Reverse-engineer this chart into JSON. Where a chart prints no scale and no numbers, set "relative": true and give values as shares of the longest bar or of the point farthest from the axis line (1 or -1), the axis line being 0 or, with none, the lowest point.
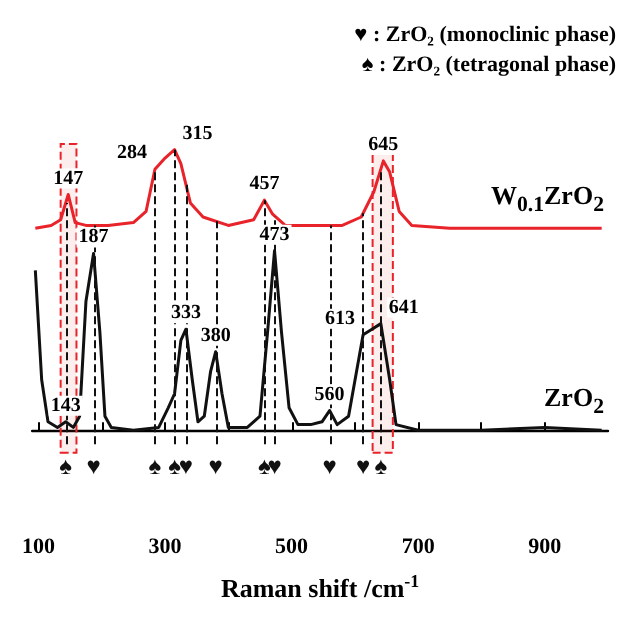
{
  "chart_data": {
    "type": "line",
    "relative": true,
    "xlabel": "Raman shift /cm$^{-1}$",
    "xlim": [
      90,
      1000
    ],
    "xticks": [
      100,
      {
        "value": 200,
        "label": null
      },
      300,
      {
        "value": 400,
        "label": null
      },
      500,
      {
        "value": 600,
        "label": null
      },
      700,
      {
        "value": 800,
        "label": null
      },
      900
    ],
    "series": [
      {
        "name": "W$_{0.1}$ZrO$_{2}$",
        "color": "#e8232a",
        "x": [
          95,
          120,
          135,
          147,
          158,
          175,
          210,
          250,
          270,
          284,
          300,
          315,
          325,
          340,
          360,
          400,
          440,
          457,
          470,
          490,
          530,
          580,
          610,
          630,
          645,
          655,
          670,
          690,
          750,
          800,
          900,
          990
        ],
        "values": [
          0.72,
          0.73,
          0.75,
          0.84,
          0.74,
          0.73,
          0.73,
          0.74,
          0.78,
          0.93,
          0.97,
          1,
          0.95,
          0.81,
          0.76,
          0.73,
          0.75,
          0.82,
          0.77,
          0.73,
          0.73,
          0.73,
          0.76,
          0.85,
          0.96,
          0.92,
          0.78,
          0.73,
          0.72,
          0.72,
          0.72,
          0.72
        ]
      },
      {
        "name": "ZrO$_{2}$",
        "color": "#111111",
        "x": [
          95,
          105,
          115,
          130,
          143,
          155,
          165,
          175,
          187,
          197,
          205,
          215,
          250,
          290,
          305,
          315,
          325,
          333,
          343,
          352,
          362,
          372,
          380,
          390,
          400,
          430,
          450,
          462,
          473,
          484,
          496,
          510,
          530,
          548,
          560,
          572,
          590,
          605,
          613,
          627,
          641,
          655,
          665,
          700,
          800,
          900,
          990
        ],
        "values": [
          0.57,
          0.18,
          0.03,
          0.01,
          0.03,
          0.01,
          0.05,
          0.46,
          0.63,
          0.35,
          0.05,
          0.01,
          0,
          0.01,
          0.08,
          0.13,
          0.32,
          0.36,
          0.18,
          0.03,
          0.05,
          0.21,
          0.28,
          0.13,
          0.01,
          0.01,
          0.05,
          0.35,
          0.64,
          0.35,
          0.08,
          0.02,
          0.02,
          0.03,
          0.07,
          0.02,
          0.05,
          0.24,
          0.34,
          0.36,
          0.38,
          0.18,
          0.02,
          0,
          0,
          0.01,
          0
        ]
      }
    ],
    "annotations": [
      "♥ : ZrO₂ (monoclinic phase)",
      "♠ : ZrO₂ (tetragonal phase)",
      {
        "text": "147",
        "x": 147,
        "y": 0.84
      },
      {
        "text": "284",
        "x": 284,
        "y": 0.93
      },
      {
        "text": "315",
        "x": 315,
        "y": 1
      },
      {
        "text": "457",
        "x": 457,
        "y": 0.82
      },
      {
        "text": "645",
        "x": 645,
        "y": 0.96
      },
      {
        "text": "187",
        "x": 187,
        "y": 0.63
      },
      {
        "text": "333",
        "x": 333,
        "y": 0.36
      },
      {
        "text": "380",
        "x": 380,
        "y": 0.28
      },
      {
        "text": "473",
        "x": 473,
        "y": 0.64
      },
      {
        "text": "560",
        "x": 560,
        "y": 0.07
      },
      {
        "text": "613",
        "x": 613,
        "y": 0.34
      },
      {
        "text": "641",
        "x": 641,
        "y": 0.38
      },
      {
        "text": "143",
        "x": 143,
        "y": 0.03
      }
    ],
    "ref_lines": [
      {
        "axis": "x",
        "value": 143,
        "label": "♠",
        "line_style": "dashed",
        "color": "#111111"
      },
      {
        "axis": "x",
        "value": 187,
        "label": "♥",
        "line_style": "dashed",
        "color": "#111111"
      },
      {
        "axis": "x",
        "value": 284,
        "label": "♠",
        "line_style": "dashed",
        "color": "#111111"
      },
      {
        "axis": "x",
        "value": 315,
        "label": "♠",
        "line_style": "dashed",
        "color": "#111111"
      },
      {
        "axis": "x",
        "value": 333,
        "label": "♥",
        "line_style": "dashed",
        "color": "#111111"
      },
      {
        "axis": "x",
        "value": 380,
        "label": "♥",
        "line_style": "dashed",
        "color": "#111111"
      },
      {
        "axis": "x",
        "value": 457,
        "label": "♠",
        "line_style": "dashed",
        "color": "#111111"
      },
      {
        "axis": "x",
        "value": 473,
        "label": "♥",
        "line_style": "dashed",
        "color": "#111111"
      },
      {
        "axis": "x",
        "value": 560,
        "label": "♥",
        "line_style": "dashed",
        "color": "#111111"
      },
      {
        "axis": "x",
        "value": 613,
        "label": "♥",
        "line_style": "dashed",
        "color": "#111111"
      },
      {
        "axis": "x",
        "value": 641,
        "label": "♠",
        "line_style": "dashed",
        "color": "#111111"
      }
    ],
    "bands": [
      {
        "axis": "x",
        "from": 135,
        "to": 160,
        "color": "#e8232a"
      },
      {
        "axis": "x",
        "from": 628,
        "to": 660,
        "color": "#e8232a"
      }
    ]
  }
}
